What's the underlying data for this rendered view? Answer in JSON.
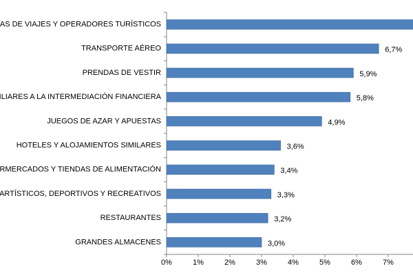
{
  "chart_data": {
    "type": "bar",
    "orientation": "horizontal",
    "categories": [
      "CIAS DE VIAJES Y OPERADORES TURÍSTICOS",
      "TRANSPORTE AÉREO",
      "PRENDAS DE VESTIR",
      "XILIARES A LA INTERMEDIACIÓN FINANCIERA",
      "JUEGOS DE AZAR Y APUESTAS",
      "HOTELES  Y ALOJAMIENTOS SIMILARES",
      "ERMERCADOS Y TIENDAS DE ALIMENTACIÓN",
      "S ARTÍSTICOS, DEPORTIVOS Y RECREATIVOS",
      "RESTAURANTES",
      "GRANDES ALMACENES"
    ],
    "values": [
      7.8,
      6.7,
      5.9,
      5.8,
      4.9,
      3.6,
      3.4,
      3.3,
      3.2,
      3.0
    ],
    "value_labels": [
      null,
      "6,7%",
      "5,9%",
      "5,8%",
      "4,9%",
      "3,6%",
      "3,4%",
      "3,3%",
      "3,2%",
      "3,0%"
    ],
    "color": "#4f81bd",
    "xlim": [
      0,
      8
    ],
    "xticks": [
      {
        "value": 0,
        "label": "0%"
      },
      {
        "value": 1,
        "label": "1%"
      },
      {
        "value": 2,
        "label": "2%"
      },
      {
        "value": 3,
        "label": "3%"
      },
      {
        "value": 4,
        "label": "4%"
      },
      {
        "value": 5,
        "label": "5%"
      },
      {
        "value": 6,
        "label": "6%"
      },
      {
        "value": 7,
        "label": "7%"
      }
    ],
    "grid": false
  }
}
